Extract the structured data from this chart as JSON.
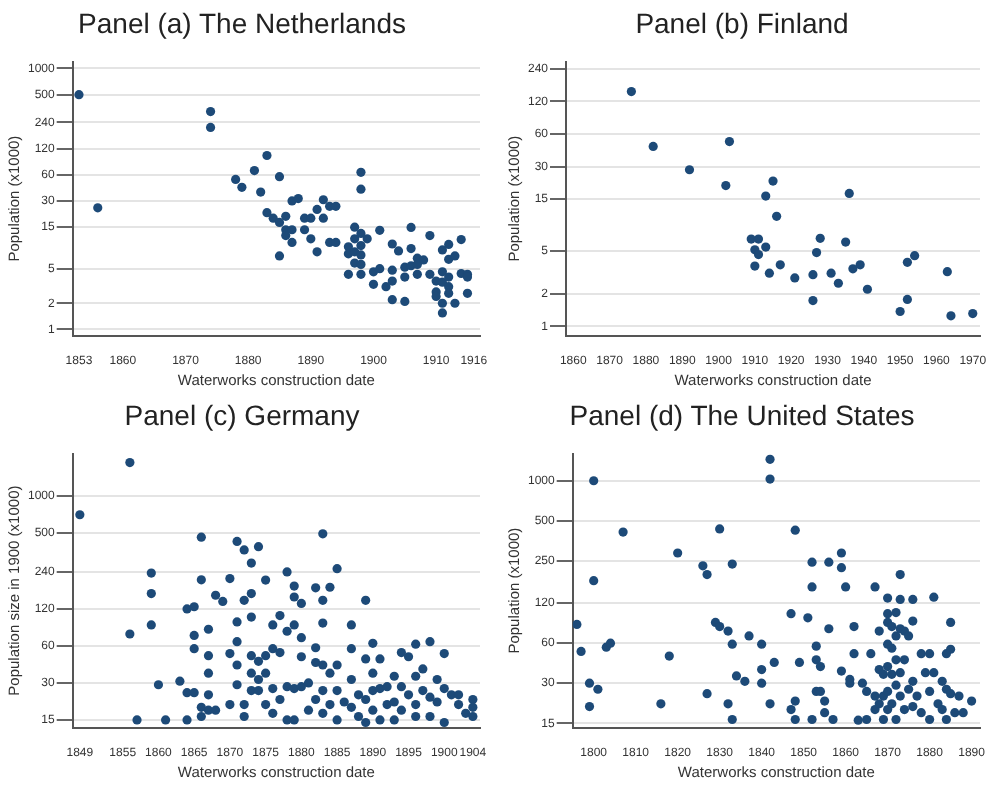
{
  "chart_data": [
    {
      "type": "scatter",
      "title": "Panel (a) The Netherlands",
      "xlabel": "Waterworks construction date",
      "ylabel": "Population (x1000)",
      "log": "y",
      "grid": "y",
      "marker": "circle",
      "color": "#1d4a78",
      "xlim": [
        1852,
        1917
      ],
      "xticks": [
        1853,
        1860,
        1870,
        1880,
        1890,
        1900,
        1910,
        1916
      ],
      "ylim": [
        0.85,
        1200
      ],
      "yticks": [
        1,
        2,
        5,
        15,
        30,
        60,
        120,
        240,
        500,
        1000
      ],
      "x": [
        1853,
        1856,
        1874,
        1874,
        1878,
        1879,
        1881,
        1882,
        1883,
        1885,
        1883,
        1884,
        1885,
        1886,
        1886,
        1886,
        1887,
        1887,
        1885,
        1887,
        1888,
        1889,
        1889,
        1890,
        1890,
        1891,
        1891,
        1892,
        1892,
        1893,
        1894,
        1893,
        1894,
        1898,
        1898,
        1897,
        1897,
        1896,
        1896,
        1896,
        1897,
        1897,
        1898,
        1898,
        1898,
        1898,
        1898,
        1899,
        1900,
        1900,
        1901,
        1901,
        1902,
        1903,
        1903,
        1903,
        1903,
        1904,
        1905,
        1905,
        1905,
        1906,
        1906,
        1906,
        1907,
        1907,
        1907,
        1908,
        1909,
        1909,
        1910,
        1910,
        1910,
        1911,
        1911,
        1911,
        1911,
        1911,
        1912,
        1912,
        1912,
        1912,
        1913,
        1913,
        1914,
        1914,
        1915,
        1915,
        1915,
        1912
      ],
      "values": [
        500,
        25,
        320,
        210,
        53,
        43,
        67,
        38,
        100,
        57,
        22,
        19,
        17,
        20,
        14,
        12,
        14,
        10,
        7,
        30,
        32,
        14,
        19,
        19,
        11,
        24,
        7.8,
        31,
        19,
        26,
        26,
        10,
        10,
        64,
        41,
        15,
        11,
        8.9,
        7.4,
        4.3,
        5.8,
        7.8,
        12.7,
        9.2,
        7.2,
        5.6,
        4.3,
        11,
        4.6,
        3.3,
        13.8,
        5,
        3.1,
        9.6,
        4.8,
        3.6,
        2.2,
        8,
        2.1,
        4,
        5.2,
        14.9,
        8.5,
        5.4,
        6.6,
        5.6,
        4.3,
        6.3,
        12,
        4.3,
        3.6,
        2.7,
        2.4,
        4.6,
        8.2,
        3.5,
        2,
        1.55,
        9.5,
        6.4,
        3.1,
        2.6,
        7,
        2,
        10.8,
        4.4,
        4.3,
        4,
        2.6,
        4
      ]
    },
    {
      "type": "scatter",
      "title": "Panel (b) Finland",
      "xlabel": "Waterworks construction date",
      "ylabel": "Population (x1000)",
      "log": "y",
      "grid": "y",
      "marker": "circle",
      "color": "#1d4a78",
      "xlim": [
        1858,
        1972
      ],
      "xticks": [
        1860,
        1870,
        1880,
        1890,
        1900,
        1910,
        1920,
        1930,
        1940,
        1950,
        1960,
        1970
      ],
      "ylim": [
        0.82,
        280
      ],
      "yticks": [
        1,
        2,
        5,
        15,
        30,
        60,
        120,
        240
      ],
      "x": [
        1876,
        1882,
        1892,
        1903,
        1902,
        1915,
        1913,
        1916,
        1909,
        1911,
        1910,
        1911,
        1913,
        1910,
        1914,
        1917,
        1921,
        1926,
        1926,
        1928,
        1927,
        1931,
        1933,
        1935,
        1936,
        1937,
        1939,
        1941,
        1950,
        1952,
        1952,
        1954,
        1963,
        1964,
        1970
      ],
      "values": [
        148,
        46,
        28,
        51,
        20,
        22,
        16,
        10.4,
        6.4,
        6.4,
        5.1,
        4.6,
        5.4,
        3.6,
        3.1,
        3.7,
        2.8,
        3,
        1.73,
        6.5,
        4.8,
        3.1,
        2.5,
        6,
        16.9,
        3.4,
        3.7,
        2.2,
        1.37,
        3.9,
        1.77,
        4.5,
        3.2,
        1.25,
        1.31
      ]
    },
    {
      "type": "scatter",
      "title": "Panel (c) Germany",
      "xlabel": "Waterworks construction date",
      "ylabel": "Population size in 1900 (x1000)",
      "log": "y",
      "grid": "y",
      "marker": "circle",
      "color": "#1d4a78",
      "xlim": [
        1848,
        1905
      ],
      "xticks": [
        1849,
        1855,
        1860,
        1865,
        1870,
        1875,
        1880,
        1885,
        1890,
        1895,
        1900,
        1904
      ],
      "ylim": [
        13,
        2200
      ],
      "yticks": [
        15,
        30,
        60,
        120,
        240,
        500,
        1000
      ],
      "x": [
        1849,
        1856,
        1856,
        1857,
        1859,
        1859,
        1859,
        1860,
        1861,
        1863,
        1864,
        1864,
        1864,
        1865,
        1865,
        1865,
        1865,
        1866,
        1866,
        1866,
        1866,
        1867,
        1867,
        1867,
        1867,
        1867,
        1868,
        1868,
        1869,
        1870,
        1870,
        1870,
        1871,
        1871,
        1871,
        1871,
        1871,
        1872,
        1872,
        1872,
        1872,
        1873,
        1873,
        1873,
        1873,
        1873,
        1873,
        1874,
        1874,
        1874,
        1874,
        1875,
        1875,
        1875,
        1875,
        1876,
        1876,
        1876,
        1876,
        1877,
        1877,
        1877,
        1878,
        1878,
        1878,
        1878,
        1879,
        1879,
        1879,
        1879,
        1879,
        1880,
        1880,
        1880,
        1880,
        1881,
        1881,
        1882,
        1882,
        1882,
        1882,
        1883,
        1883,
        1883,
        1883,
        1883,
        1883,
        1884,
        1884,
        1884,
        1885,
        1885,
        1885,
        1885,
        1886,
        1887,
        1887,
        1887,
        1887,
        1888,
        1888,
        1889,
        1889,
        1889,
        1889,
        1890,
        1890,
        1890,
        1890,
        1891,
        1891,
        1891,
        1892,
        1892,
        1893,
        1893,
        1893,
        1894,
        1894,
        1894,
        1895,
        1895,
        1896,
        1896,
        1896,
        1896,
        1897,
        1897,
        1898,
        1898,
        1898,
        1899,
        1899,
        1900,
        1900,
        1900,
        1901,
        1902,
        1902,
        1903,
        1904,
        1904,
        1904
      ],
      "values": [
        700,
        1860,
        75,
        15,
        235,
        160,
        89,
        29,
        15,
        31,
        15,
        120,
        25,
        125,
        73,
        57,
        25,
        460,
        207,
        19,
        16,
        82,
        50,
        36,
        24,
        18,
        155,
        18,
        138,
        212,
        52,
        20,
        425,
        94,
        65,
        42,
        29,
        362,
        141,
        20,
        16,
        283,
        160,
        103,
        50,
        36,
        26,
        385,
        45,
        32,
        26,
        206,
        50,
        36,
        20,
        89,
        57,
        27,
        17,
        106,
        53,
        22,
        240,
        79,
        28,
        15,
        184,
        150,
        89,
        27,
        15,
        133,
        70,
        49,
        28,
        30,
        18,
        178,
        58,
        44,
        22,
        490,
        141,
        92,
        42,
        26,
        17,
        180,
        36,
        20,
        255,
        42,
        26,
        15,
        21,
        89,
        57,
        32,
        19,
        24,
        16,
        141,
        47,
        22,
        14.3,
        63,
        36,
        26,
        18,
        47,
        27,
        15,
        28,
        20,
        34,
        21,
        15,
        53,
        28,
        18,
        49,
        24,
        62,
        34,
        20,
        16,
        39,
        26,
        65,
        23,
        16,
        32,
        21,
        52,
        27,
        14.3,
        24,
        24,
        20,
        17,
        22,
        19,
        16
      ]
    },
    {
      "type": "scatter",
      "title": "Panel (d) The United States",
      "xlabel": "Waterworks construction date",
      "ylabel": "Population (x1000)",
      "log": "y",
      "grid": "y",
      "marker": "circle",
      "color": "#1d4a78",
      "xlim": [
        1795,
        1892
      ],
      "xticks": [
        1800,
        1810,
        1820,
        1830,
        1840,
        1850,
        1860,
        1870,
        1880,
        1890
      ],
      "ylim": [
        13.9,
        1600
      ],
      "yticks": [
        15,
        30,
        60,
        120,
        250,
        500,
        1000
      ],
      "x": [
        1796,
        1797,
        1799,
        1799,
        1800,
        1800,
        1801,
        1803,
        1804,
        1807,
        1816,
        1818,
        1820,
        1826,
        1827,
        1827,
        1829,
        1830,
        1830,
        1832,
        1832,
        1833,
        1833,
        1833,
        1834,
        1836,
        1837,
        1840,
        1840,
        1840,
        1842,
        1842,
        1842,
        1843,
        1847,
        1847,
        1848,
        1848,
        1848,
        1849,
        1851,
        1852,
        1852,
        1852,
        1853,
        1853,
        1853,
        1854,
        1854,
        1855,
        1855,
        1856,
        1856,
        1857,
        1859,
        1859,
        1859,
        1860,
        1861,
        1861,
        1862,
        1862,
        1863,
        1864,
        1865,
        1865,
        1866,
        1867,
        1867,
        1867,
        1868,
        1868,
        1868,
        1869,
        1869,
        1869,
        1870,
        1870,
        1870,
        1870,
        1870,
        1870,
        1870,
        1871,
        1871,
        1871,
        1871,
        1872,
        1872,
        1872,
        1872,
        1872,
        1873,
        1873,
        1873,
        1873,
        1873,
        1874,
        1874,
        1874,
        1875,
        1875,
        1876,
        1876,
        1876,
        1876,
        1877,
        1878,
        1878,
        1879,
        1880,
        1880,
        1880,
        1881,
        1881,
        1882,
        1883,
        1883,
        1884,
        1884,
        1884,
        1885,
        1885,
        1885,
        1886,
        1887,
        1888,
        1890
      ],
      "values": [
        83,
        52,
        30,
        20,
        1000,
        177,
        27,
        56,
        60,
        411,
        21,
        48,
        286,
        229,
        197,
        25,
        86,
        80,
        434,
        74,
        21,
        236,
        59,
        16,
        34,
        31,
        68,
        59,
        38,
        30,
        1450,
        1030,
        21,
        43,
        100,
        19,
        425,
        22,
        16,
        43,
        93,
        244,
        159,
        16,
        57,
        45,
        26,
        40,
        26,
        22,
        18,
        244,
        77,
        16,
        286,
        222,
        37,
        159,
        32,
        30,
        50,
        80,
        15.8,
        30,
        16,
        26,
        50,
        159,
        24,
        19,
        74,
        38,
        21,
        35,
        24,
        16,
        131,
        100,
        86,
        59,
        40,
        26,
        19,
        80,
        55,
        35,
        21,
        102,
        68,
        45,
        29,
        16,
        197,
        128,
        77,
        36,
        24,
        74,
        45,
        19,
        68,
        27,
        128,
        88,
        31,
        20,
        24,
        50,
        18,
        36,
        50,
        26,
        16,
        133,
        36,
        21,
        31,
        19,
        50,
        27,
        16,
        86,
        54,
        25,
        18,
        24,
        18,
        22
      ]
    }
  ]
}
